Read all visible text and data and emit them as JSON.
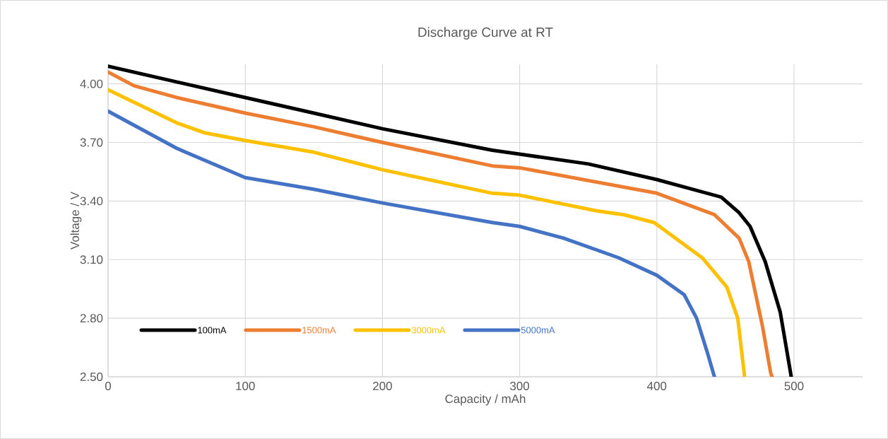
{
  "chart_data": {
    "type": "line",
    "title": "Discharge Curve at RT",
    "xlabel": "Capacity / mAh",
    "ylabel": "Voltage / V",
    "xlim": [
      0,
      550
    ],
    "xticks": [
      0,
      100,
      200,
      300,
      400,
      500
    ],
    "ylim": [
      2.5,
      4.1
    ],
    "yticks": [
      {
        "value": 2.5,
        "label": "2.50"
      },
      {
        "value": 2.8,
        "label": "2.80"
      },
      {
        "value": 3.1,
        "label": "3.10"
      },
      {
        "value": 3.4,
        "label": "3.40"
      },
      {
        "value": 3.7,
        "label": "3.70"
      },
      {
        "value": 4.0,
        "label": "4.00"
      }
    ],
    "grid": true,
    "legend": "bottom left",
    "marker": "none",
    "line_style": "solid",
    "series": [
      {
        "name": "100mA",
        "color": "#000000",
        "x": [
          0,
          50,
          100,
          150,
          200,
          280,
          300,
          350,
          400,
          447,
          460,
          468,
          479,
          490,
          498
        ],
        "values": [
          4.09,
          4.01,
          3.93,
          3.85,
          3.77,
          3.66,
          3.64,
          3.59,
          3.51,
          3.42,
          3.34,
          3.27,
          3.09,
          2.83,
          2.5
        ]
      },
      {
        "name": "1500mA",
        "color": "#ed7d31",
        "x": [
          0,
          19,
          50,
          100,
          150,
          200,
          280,
          300,
          400,
          442,
          460,
          467,
          477,
          483,
          484
        ],
        "values": [
          4.06,
          3.99,
          3.93,
          3.85,
          3.78,
          3.7,
          3.58,
          3.57,
          3.44,
          3.33,
          3.21,
          3.09,
          2.76,
          2.52,
          2.5
        ]
      },
      {
        "name": "3000mA",
        "color": "#ffc000",
        "x": [
          0,
          50,
          70,
          100,
          150,
          200,
          280,
          300,
          356,
          376,
          398,
          433,
          451,
          459,
          464
        ],
        "values": [
          3.97,
          3.8,
          3.75,
          3.71,
          3.65,
          3.56,
          3.44,
          3.43,
          3.35,
          3.33,
          3.29,
          3.11,
          2.96,
          2.8,
          2.5
        ]
      },
      {
        "name": "5000mA",
        "color": "#4472c4",
        "x": [
          0,
          50,
          100,
          150,
          200,
          280,
          300,
          332,
          372,
          400,
          420,
          429,
          437,
          442
        ],
        "values": [
          3.86,
          3.67,
          3.52,
          3.46,
          3.39,
          3.29,
          3.27,
          3.21,
          3.11,
          3.02,
          2.92,
          2.8,
          2.62,
          2.5
        ]
      }
    ]
  }
}
